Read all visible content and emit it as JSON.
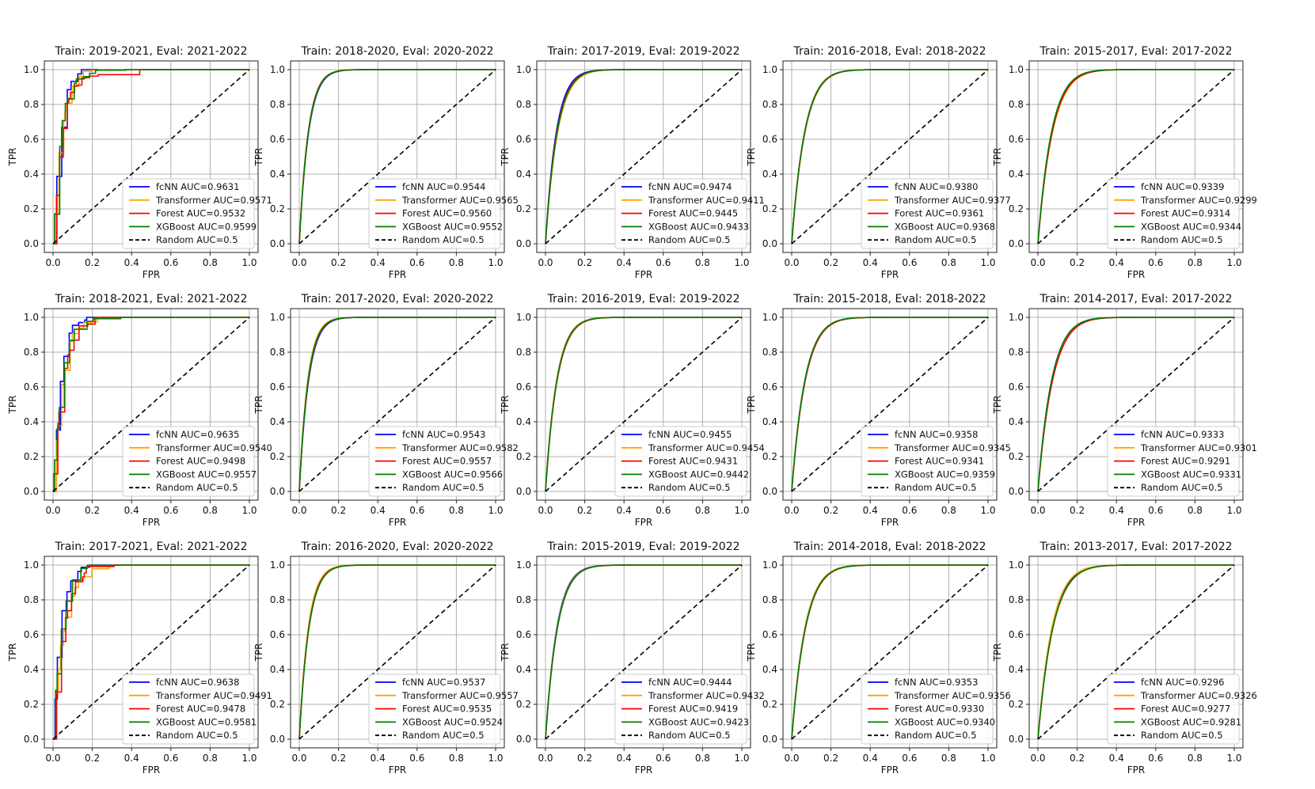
{
  "colors": {
    "fcNN": "#0000ff",
    "Transformer": "#ffa500",
    "Forest": "#ff0000",
    "XGBoost": "#008000",
    "Random": "#000000",
    "grid": "#b0b0b0",
    "frame": "#222222"
  },
  "chart_data": [
    {
      "type": "line",
      "title": "Train: 2019-2021, Eval: 2021-2022",
      "xlabel": "FPR",
      "ylabel": "TPR",
      "xlim": [
        0,
        1
      ],
      "ylim": [
        0,
        1
      ],
      "xticks": [
        "0.0",
        "0.2",
        "0.4",
        "0.6",
        "0.8",
        "1.0"
      ],
      "yticks": [
        "0.0",
        "0.2",
        "0.4",
        "0.6",
        "0.8",
        "1.0"
      ],
      "grid": true,
      "legend_position": "lower-right",
      "step": true,
      "series": [
        {
          "name": "fcNN",
          "label": "fcNN AUC=0.9631",
          "auc": 0.9631
        },
        {
          "name": "Transformer",
          "label": "Transformer AUC=0.9571",
          "auc": 0.9571
        },
        {
          "name": "Forest",
          "label": "Forest AUC=0.9532",
          "auc": 0.9532
        },
        {
          "name": "XGBoost",
          "label": "XGBoost AUC=0.9599",
          "auc": 0.9599
        },
        {
          "name": "Random",
          "label": "Random AUC=0.5",
          "auc": 0.5
        }
      ]
    },
    {
      "type": "line",
      "title": "Train: 2018-2020, Eval: 2020-2022",
      "xlabel": "FPR",
      "ylabel": "TPR",
      "xlim": [
        0,
        1
      ],
      "ylim": [
        0,
        1
      ],
      "xticks": [
        "0.0",
        "0.2",
        "0.4",
        "0.6",
        "0.8",
        "1.0"
      ],
      "yticks": [
        "0.0",
        "0.2",
        "0.4",
        "0.6",
        "0.8",
        "1.0"
      ],
      "grid": true,
      "legend_position": "lower-right",
      "step": false,
      "series": [
        {
          "name": "fcNN",
          "label": "fcNN AUC=0.9544",
          "auc": 0.9544
        },
        {
          "name": "Transformer",
          "label": "Transformer AUC=0.9565",
          "auc": 0.9565
        },
        {
          "name": "Forest",
          "label": "Forest AUC=0.9560",
          "auc": 0.956
        },
        {
          "name": "XGBoost",
          "label": "XGBoost AUC=0.9552",
          "auc": 0.9552
        },
        {
          "name": "Random",
          "label": "Random AUC=0.5",
          "auc": 0.5
        }
      ]
    },
    {
      "type": "line",
      "title": "Train: 2017-2019, Eval: 2019-2022",
      "xlabel": "FPR",
      "ylabel": "TPR",
      "xlim": [
        0,
        1
      ],
      "ylim": [
        0,
        1
      ],
      "xticks": [
        "0.0",
        "0.2",
        "0.4",
        "0.6",
        "0.8",
        "1.0"
      ],
      "yticks": [
        "0.0",
        "0.2",
        "0.4",
        "0.6",
        "0.8",
        "1.0"
      ],
      "grid": true,
      "legend_position": "lower-right",
      "step": false,
      "series": [
        {
          "name": "fcNN",
          "label": "fcNN AUC=0.9474",
          "auc": 0.9474
        },
        {
          "name": "Transformer",
          "label": "Transformer AUC=0.9411",
          "auc": 0.9411
        },
        {
          "name": "Forest",
          "label": "Forest AUC=0.9445",
          "auc": 0.9445
        },
        {
          "name": "XGBoost",
          "label": "XGBoost AUC=0.9433",
          "auc": 0.9433
        },
        {
          "name": "Random",
          "label": "Random AUC=0.5",
          "auc": 0.5
        }
      ]
    },
    {
      "type": "line",
      "title": "Train: 2016-2018, Eval: 2018-2022",
      "xlabel": "FPR",
      "ylabel": "TPR",
      "xlim": [
        0,
        1
      ],
      "ylim": [
        0,
        1
      ],
      "xticks": [
        "0.0",
        "0.2",
        "0.4",
        "0.6",
        "0.8",
        "1.0"
      ],
      "yticks": [
        "0.0",
        "0.2",
        "0.4",
        "0.6",
        "0.8",
        "1.0"
      ],
      "grid": true,
      "legend_position": "lower-right",
      "step": false,
      "series": [
        {
          "name": "fcNN",
          "label": "fcNN AUC=0.9380",
          "auc": 0.938
        },
        {
          "name": "Transformer",
          "label": "Transformer AUC=0.9377",
          "auc": 0.9377
        },
        {
          "name": "Forest",
          "label": "Forest AUC=0.9361",
          "auc": 0.9361
        },
        {
          "name": "XGBoost",
          "label": "XGBoost AUC=0.9368",
          "auc": 0.9368
        },
        {
          "name": "Random",
          "label": "Random AUC=0.5",
          "auc": 0.5
        }
      ]
    },
    {
      "type": "line",
      "title": "Train: 2015-2017, Eval: 2017-2022",
      "xlabel": "FPR",
      "ylabel": "TPR",
      "xlim": [
        0,
        1
      ],
      "ylim": [
        0,
        1
      ],
      "xticks": [
        "0.0",
        "0.2",
        "0.4",
        "0.6",
        "0.8",
        "1.0"
      ],
      "yticks": [
        "0.0",
        "0.2",
        "0.4",
        "0.6",
        "0.8",
        "1.0"
      ],
      "grid": true,
      "legend_position": "lower-right",
      "step": false,
      "series": [
        {
          "name": "fcNN",
          "label": "fcNN AUC=0.9339",
          "auc": 0.9339
        },
        {
          "name": "Transformer",
          "label": "Transformer AUC=0.9299",
          "auc": 0.9299
        },
        {
          "name": "Forest",
          "label": "Forest AUC=0.9314",
          "auc": 0.9314
        },
        {
          "name": "XGBoost",
          "label": "XGBoost AUC=0.9344",
          "auc": 0.9344
        },
        {
          "name": "Random",
          "label": "Random AUC=0.5",
          "auc": 0.5
        }
      ]
    },
    {
      "type": "line",
      "title": "Train: 2018-2021, Eval: 2021-2022",
      "xlabel": "FPR",
      "ylabel": "TPR",
      "xlim": [
        0,
        1
      ],
      "ylim": [
        0,
        1
      ],
      "xticks": [
        "0.0",
        "0.2",
        "0.4",
        "0.6",
        "0.8",
        "1.0"
      ],
      "yticks": [
        "0.0",
        "0.2",
        "0.4",
        "0.6",
        "0.8",
        "1.0"
      ],
      "grid": true,
      "legend_position": "lower-right",
      "step": true,
      "series": [
        {
          "name": "fcNN",
          "label": "fcNN AUC=0.9635",
          "auc": 0.9635
        },
        {
          "name": "Transformer",
          "label": "Transformer AUC=0.9540",
          "auc": 0.954
        },
        {
          "name": "Forest",
          "label": "Forest AUC=0.9498",
          "auc": 0.9498
        },
        {
          "name": "XGBoost",
          "label": "XGBoost AUC=0.9557",
          "auc": 0.9557
        },
        {
          "name": "Random",
          "label": "Random AUC=0.5",
          "auc": 0.5
        }
      ]
    },
    {
      "type": "line",
      "title": "Train: 2017-2020, Eval: 2020-2022",
      "xlabel": "FPR",
      "ylabel": "TPR",
      "xlim": [
        0,
        1
      ],
      "ylim": [
        0,
        1
      ],
      "xticks": [
        "0.0",
        "0.2",
        "0.4",
        "0.6",
        "0.8",
        "1.0"
      ],
      "yticks": [
        "0.0",
        "0.2",
        "0.4",
        "0.6",
        "0.8",
        "1.0"
      ],
      "grid": true,
      "legend_position": "lower-right",
      "step": false,
      "series": [
        {
          "name": "fcNN",
          "label": "fcNN AUC=0.9543",
          "auc": 0.9543
        },
        {
          "name": "Transformer",
          "label": "Transformer AUC=0.9582",
          "auc": 0.9582
        },
        {
          "name": "Forest",
          "label": "Forest AUC=0.9557",
          "auc": 0.9557
        },
        {
          "name": "XGBoost",
          "label": "XGBoost AUC=0.9566",
          "auc": 0.9566
        },
        {
          "name": "Random",
          "label": "Random AUC=0.5",
          "auc": 0.5
        }
      ]
    },
    {
      "type": "line",
      "title": "Train: 2016-2019, Eval: 2019-2022",
      "xlabel": "FPR",
      "ylabel": "TPR",
      "xlim": [
        0,
        1
      ],
      "ylim": [
        0,
        1
      ],
      "xticks": [
        "0.0",
        "0.2",
        "0.4",
        "0.6",
        "0.8",
        "1.0"
      ],
      "yticks": [
        "0.0",
        "0.2",
        "0.4",
        "0.6",
        "0.8",
        "1.0"
      ],
      "grid": true,
      "legend_position": "lower-right",
      "step": false,
      "series": [
        {
          "name": "fcNN",
          "label": "fcNN AUC=0.9455",
          "auc": 0.9455
        },
        {
          "name": "Transformer",
          "label": "Transformer AUC=0.9454",
          "auc": 0.9454
        },
        {
          "name": "Forest",
          "label": "Forest AUC=0.9431",
          "auc": 0.9431
        },
        {
          "name": "XGBoost",
          "label": "XGBoost AUC=0.9442",
          "auc": 0.9442
        },
        {
          "name": "Random",
          "label": "Random AUC=0.5",
          "auc": 0.5
        }
      ]
    },
    {
      "type": "line",
      "title": "Train: 2015-2018, Eval: 2018-2022",
      "xlabel": "FPR",
      "ylabel": "TPR",
      "xlim": [
        0,
        1
      ],
      "ylim": [
        0,
        1
      ],
      "xticks": [
        "0.0",
        "0.2",
        "0.4",
        "0.6",
        "0.8",
        "1.0"
      ],
      "yticks": [
        "0.0",
        "0.2",
        "0.4",
        "0.6",
        "0.8",
        "1.0"
      ],
      "grid": true,
      "legend_position": "lower-right",
      "step": false,
      "series": [
        {
          "name": "fcNN",
          "label": "fcNN AUC=0.9358",
          "auc": 0.9358
        },
        {
          "name": "Transformer",
          "label": "Transformer AUC=0.9345",
          "auc": 0.9345
        },
        {
          "name": "Forest",
          "label": "Forest AUC=0.9341",
          "auc": 0.9341
        },
        {
          "name": "XGBoost",
          "label": "XGBoost AUC=0.9359",
          "auc": 0.9359
        },
        {
          "name": "Random",
          "label": "Random AUC=0.5",
          "auc": 0.5
        }
      ]
    },
    {
      "type": "line",
      "title": "Train: 2014-2017, Eval: 2017-2022",
      "xlabel": "FPR",
      "ylabel": "TPR",
      "xlim": [
        0,
        1
      ],
      "ylim": [
        0,
        1
      ],
      "xticks": [
        "0.0",
        "0.2",
        "0.4",
        "0.6",
        "0.8",
        "1.0"
      ],
      "yticks": [
        "0.0",
        "0.2",
        "0.4",
        "0.6",
        "0.8",
        "1.0"
      ],
      "grid": true,
      "legend_position": "lower-right",
      "step": false,
      "series": [
        {
          "name": "fcNN",
          "label": "fcNN AUC=0.9333",
          "auc": 0.9333
        },
        {
          "name": "Transformer",
          "label": "Transformer AUC=0.9301",
          "auc": 0.9301
        },
        {
          "name": "Forest",
          "label": "Forest AUC=0.9291",
          "auc": 0.9291
        },
        {
          "name": "XGBoost",
          "label": "XGBoost AUC=0.9331",
          "auc": 0.9331
        },
        {
          "name": "Random",
          "label": "Random AUC=0.5",
          "auc": 0.5
        }
      ]
    },
    {
      "type": "line",
      "title": "Train: 2017-2021, Eval: 2021-2022",
      "xlabel": "FPR",
      "ylabel": "TPR",
      "xlim": [
        0,
        1
      ],
      "ylim": [
        0,
        1
      ],
      "xticks": [
        "0.0",
        "0.2",
        "0.4",
        "0.6",
        "0.8",
        "1.0"
      ],
      "yticks": [
        "0.0",
        "0.2",
        "0.4",
        "0.6",
        "0.8",
        "1.0"
      ],
      "grid": true,
      "legend_position": "lower-right",
      "step": true,
      "series": [
        {
          "name": "fcNN",
          "label": "fcNN AUC=0.9638",
          "auc": 0.9638
        },
        {
          "name": "Transformer",
          "label": "Transformer AUC=0.9491",
          "auc": 0.9491
        },
        {
          "name": "Forest",
          "label": "Forest AUC=0.9478",
          "auc": 0.9478
        },
        {
          "name": "XGBoost",
          "label": "XGBoost AUC=0.9581",
          "auc": 0.9581
        },
        {
          "name": "Random",
          "label": "Random AUC=0.5",
          "auc": 0.5
        }
      ]
    },
    {
      "type": "line",
      "title": "Train: 2016-2020, Eval: 2020-2022",
      "xlabel": "FPR",
      "ylabel": "TPR",
      "xlim": [
        0,
        1
      ],
      "ylim": [
        0,
        1
      ],
      "xticks": [
        "0.0",
        "0.2",
        "0.4",
        "0.6",
        "0.8",
        "1.0"
      ],
      "yticks": [
        "0.0",
        "0.2",
        "0.4",
        "0.6",
        "0.8",
        "1.0"
      ],
      "grid": true,
      "legend_position": "lower-right",
      "step": false,
      "series": [
        {
          "name": "fcNN",
          "label": "fcNN AUC=0.9537",
          "auc": 0.9537
        },
        {
          "name": "Transformer",
          "label": "Transformer AUC=0.9557",
          "auc": 0.9557
        },
        {
          "name": "Forest",
          "label": "Forest AUC=0.9535",
          "auc": 0.9535
        },
        {
          "name": "XGBoost",
          "label": "XGBoost AUC=0.9524",
          "auc": 0.9524
        },
        {
          "name": "Random",
          "label": "Random AUC=0.5",
          "auc": 0.5
        }
      ]
    },
    {
      "type": "line",
      "title": "Train: 2015-2019, Eval: 2019-2022",
      "xlabel": "FPR",
      "ylabel": "TPR",
      "xlim": [
        0,
        1
      ],
      "ylim": [
        0,
        1
      ],
      "xticks": [
        "0.0",
        "0.2",
        "0.4",
        "0.6",
        "0.8",
        "1.0"
      ],
      "yticks": [
        "0.0",
        "0.2",
        "0.4",
        "0.6",
        "0.8",
        "1.0"
      ],
      "grid": true,
      "legend_position": "lower-right",
      "step": false,
      "series": [
        {
          "name": "fcNN",
          "label": "fcNN AUC=0.9444",
          "auc": 0.9444
        },
        {
          "name": "Transformer",
          "label": "Transformer AUC=0.9432",
          "auc": 0.9432
        },
        {
          "name": "Forest",
          "label": "Forest AUC=0.9419",
          "auc": 0.9419
        },
        {
          "name": "XGBoost",
          "label": "XGBoost AUC=0.9423",
          "auc": 0.9423
        },
        {
          "name": "Random",
          "label": "Random AUC=0.5",
          "auc": 0.5
        }
      ]
    },
    {
      "type": "line",
      "title": "Train: 2014-2018, Eval: 2018-2022",
      "xlabel": "FPR",
      "ylabel": "TPR",
      "xlim": [
        0,
        1
      ],
      "ylim": [
        0,
        1
      ],
      "xticks": [
        "0.0",
        "0.2",
        "0.4",
        "0.6",
        "0.8",
        "1.0"
      ],
      "yticks": [
        "0.0",
        "0.2",
        "0.4",
        "0.6",
        "0.8",
        "1.0"
      ],
      "grid": true,
      "legend_position": "lower-right",
      "step": false,
      "series": [
        {
          "name": "fcNN",
          "label": "fcNN AUC=0.9353",
          "auc": 0.9353
        },
        {
          "name": "Transformer",
          "label": "Transformer AUC=0.9356",
          "auc": 0.9356
        },
        {
          "name": "Forest",
          "label": "Forest AUC=0.9330",
          "auc": 0.933
        },
        {
          "name": "XGBoost",
          "label": "XGBoost AUC=0.9340",
          "auc": 0.934
        },
        {
          "name": "Random",
          "label": "Random AUC=0.5",
          "auc": 0.5
        }
      ]
    },
    {
      "type": "line",
      "title": "Train: 2013-2017, Eval: 2017-2022",
      "xlabel": "FPR",
      "ylabel": "TPR",
      "xlim": [
        0,
        1
      ],
      "ylim": [
        0,
        1
      ],
      "xticks": [
        "0.0",
        "0.2",
        "0.4",
        "0.6",
        "0.8",
        "1.0"
      ],
      "yticks": [
        "0.0",
        "0.2",
        "0.4",
        "0.6",
        "0.8",
        "1.0"
      ],
      "grid": true,
      "legend_position": "lower-right",
      "step": false,
      "series": [
        {
          "name": "fcNN",
          "label": "fcNN AUC=0.9296",
          "auc": 0.9296
        },
        {
          "name": "Transformer",
          "label": "Transformer AUC=0.9326",
          "auc": 0.9326
        },
        {
          "name": "Forest",
          "label": "Forest AUC=0.9277",
          "auc": 0.9277
        },
        {
          "name": "XGBoost",
          "label": "XGBoost AUC=0.9281",
          "auc": 0.9281
        },
        {
          "name": "Random",
          "label": "Random AUC=0.5",
          "auc": 0.5
        }
      ]
    }
  ]
}
